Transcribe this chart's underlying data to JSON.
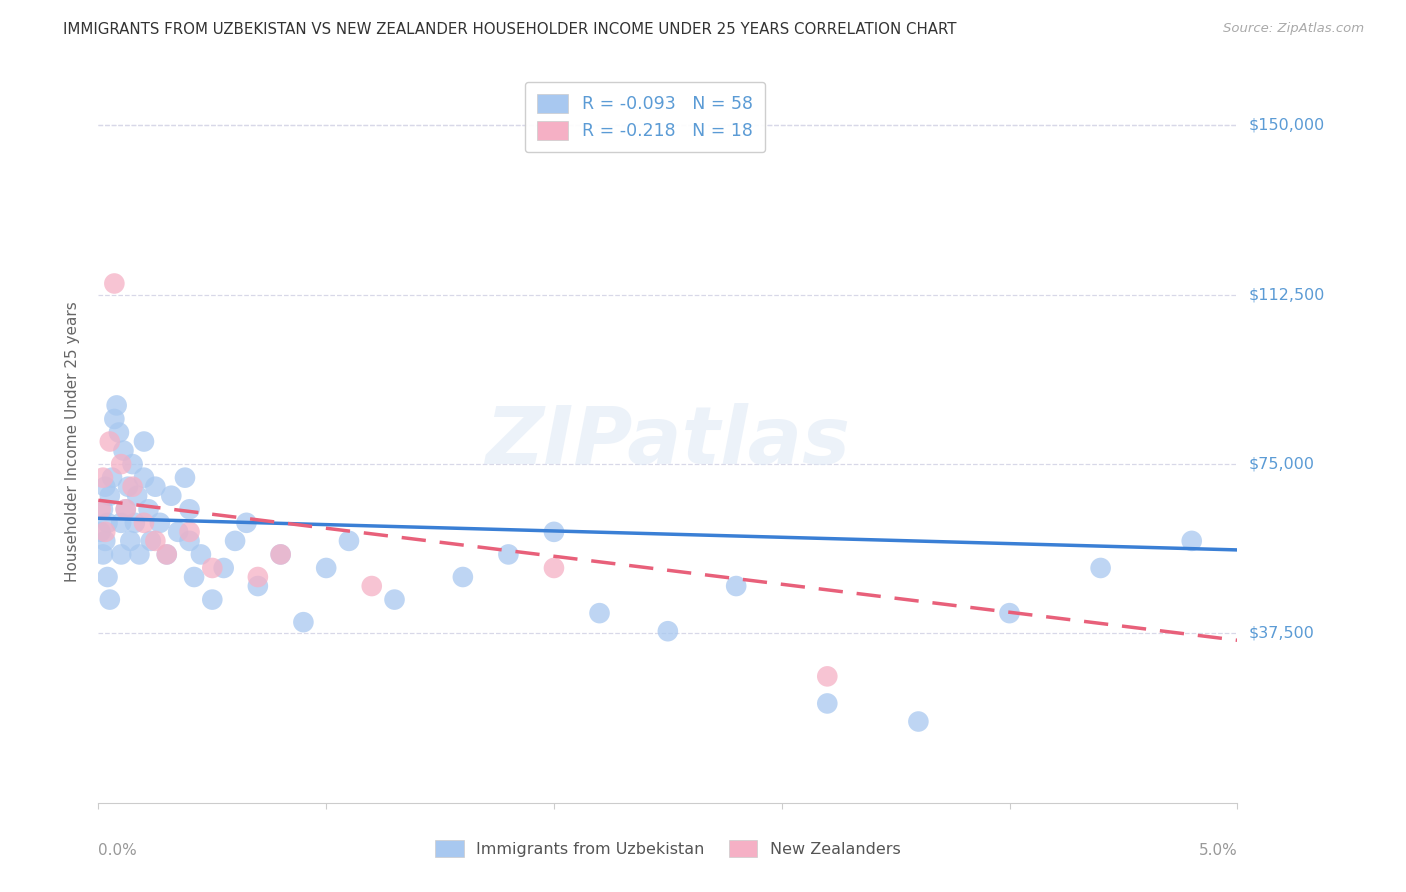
{
  "title": "IMMIGRANTS FROM UZBEKISTAN VS NEW ZEALANDER HOUSEHOLDER INCOME UNDER 25 YEARS CORRELATION CHART",
  "source": "Source: ZipAtlas.com",
  "ylabel": "Householder Income Under 25 years",
  "ytick_labels": [
    "$150,000",
    "$112,500",
    "$75,000",
    "$37,500"
  ],
  "ytick_values": [
    150000,
    112500,
    75000,
    37500
  ],
  "ylim": [
    0,
    160000
  ],
  "xlim": [
    0.0,
    0.05
  ],
  "watermark": "ZIPatlas",
  "blue_scatter_color": "#a8c8f0",
  "pink_scatter_color": "#f5b0c5",
  "blue_line_color": "#3a7fd5",
  "pink_line_color": "#e8607a",
  "title_color": "#333333",
  "axis_label_color": "#5b9bd5",
  "grid_color": "#d8d8e8",
  "uz_x": [
    0.0001,
    0.0002,
    0.0002,
    0.0003,
    0.0003,
    0.0004,
    0.0004,
    0.0005,
    0.0005,
    0.0006,
    0.0007,
    0.0008,
    0.0009,
    0.001,
    0.001,
    0.0011,
    0.0012,
    0.0013,
    0.0014,
    0.0015,
    0.0016,
    0.0017,
    0.0018,
    0.002,
    0.002,
    0.0022,
    0.0023,
    0.0025,
    0.0027,
    0.003,
    0.0032,
    0.0035,
    0.0038,
    0.004,
    0.004,
    0.0042,
    0.0045,
    0.005,
    0.0055,
    0.006,
    0.0065,
    0.007,
    0.008,
    0.009,
    0.01,
    0.011,
    0.013,
    0.016,
    0.018,
    0.02,
    0.022,
    0.025,
    0.028,
    0.032,
    0.036,
    0.04,
    0.044,
    0.048
  ],
  "uz_y": [
    60000,
    55000,
    65000,
    58000,
    70000,
    62000,
    50000,
    68000,
    45000,
    72000,
    85000,
    88000,
    82000,
    62000,
    55000,
    78000,
    65000,
    70000,
    58000,
    75000,
    62000,
    68000,
    55000,
    80000,
    72000,
    65000,
    58000,
    70000,
    62000,
    55000,
    68000,
    60000,
    72000,
    58000,
    65000,
    50000,
    55000,
    45000,
    52000,
    58000,
    62000,
    48000,
    55000,
    40000,
    52000,
    58000,
    45000,
    50000,
    55000,
    60000,
    42000,
    38000,
    48000,
    22000,
    18000,
    42000,
    52000,
    58000
  ],
  "nz_x": [
    0.0001,
    0.0002,
    0.0003,
    0.0005,
    0.0007,
    0.001,
    0.0012,
    0.0015,
    0.002,
    0.0025,
    0.003,
    0.004,
    0.005,
    0.007,
    0.008,
    0.012,
    0.02,
    0.032
  ],
  "nz_y": [
    65000,
    72000,
    60000,
    80000,
    115000,
    75000,
    65000,
    70000,
    62000,
    58000,
    55000,
    60000,
    52000,
    50000,
    55000,
    48000,
    52000,
    28000
  ],
  "uz_line_x0": 0.0,
  "uz_line_x1": 0.05,
  "uz_line_y0": 63000,
  "uz_line_y1": 56000,
  "nz_line_x0": 0.0,
  "nz_line_x1": 0.05,
  "nz_line_y0": 67000,
  "nz_line_y1": 36000
}
